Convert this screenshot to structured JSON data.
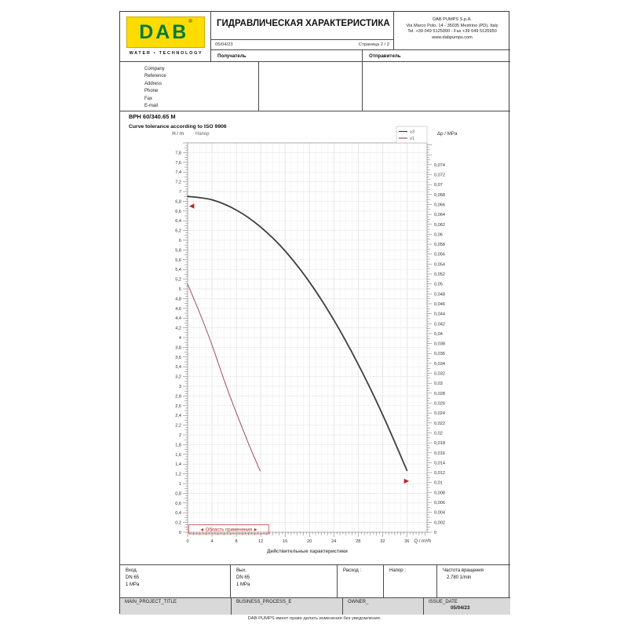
{
  "header": {
    "logo": {
      "brand": "DAB",
      "reg": "®",
      "tagline": "WATER • TECHNOLOGY",
      "bg_color": "#ffdc00",
      "brand_color": "#007a3d"
    },
    "title": "ГИДРАВЛИЧЕСКАЯ ХАРАКТЕРИСТИКА",
    "date": "05/04/23",
    "page": "Страница 2 / 2",
    "address_lines": [
      "DAB PUMPS S.p.A.",
      "Via Marco Polo, 14 - 35035 Mestrino (PD), Italy",
      "Tel. +39 049 5125000 - Fax +39 049 5125950",
      "www.dabpumps.com"
    ],
    "recipient_label": "Получатель",
    "sender_label": "Отправитель",
    "contact_fields": [
      "Company",
      "Reference",
      "Address",
      "Phone",
      "Fax",
      "E-mail"
    ]
  },
  "pump": {
    "model": "BPH 60/340.65 M",
    "tolerance_note": "Curve tolerance according to ISO 9906"
  },
  "chart_data": {
    "type": "line",
    "inner_label": "Напор",
    "ylabel_left": "H / m",
    "ylabel_right": "Δp / MPa",
    "xlabel": "Q / m³/h",
    "x_note": "Действительные характеристики",
    "xlim": [
      0,
      39.3
    ],
    "ylim_left": [
      0,
      8
    ],
    "ylim_right": [
      0,
      0.0784
    ],
    "x_label_step": 4,
    "x_minor_step": 0.5,
    "x_label_max": 36,
    "y_left_label_step": 0.2,
    "y_left_minor_step": 0.05,
    "y_right_label_step": 0.002,
    "y_right_minor_step": 0.0005,
    "y_right_label_max": 0.074,
    "grid": true,
    "legend": {
      "position": "top-right",
      "entries": [
        "v3",
        "v1"
      ]
    },
    "series": [
      {
        "name": "v3",
        "color": "#3d3d3d",
        "width": 1.8,
        "points": [
          [
            0,
            6.9
          ],
          [
            4,
            6.83
          ],
          [
            8,
            6.62
          ],
          [
            12,
            6.27
          ],
          [
            16,
            5.78
          ],
          [
            20,
            5.14
          ],
          [
            24,
            4.36
          ],
          [
            28,
            3.45
          ],
          [
            32,
            2.42
          ],
          [
            36,
            1.27
          ]
        ]
      },
      {
        "name": "v1",
        "color": "#a04868",
        "width": 1,
        "points": [
          [
            0,
            5.1
          ],
          [
            2,
            4.5
          ],
          [
            4,
            3.85
          ],
          [
            6,
            3.12
          ],
          [
            8,
            2.45
          ],
          [
            10,
            1.82
          ],
          [
            11.9,
            1.26
          ]
        ]
      }
    ],
    "markers": [
      {
        "shape": "triangle-left",
        "color": "#b82828",
        "x": 0.7,
        "y": 6.7
      },
      {
        "shape": "triangle-right",
        "color": "#b82828",
        "x": 35.9,
        "y": 1.05
      }
    ],
    "application_range": {
      "text": "Область применения",
      "arrow_left": "◄",
      "arrow_right": "►",
      "color": "#b82828",
      "x_start": 0.2,
      "x_end": 13.3
    }
  },
  "specs": {
    "inlet": {
      "title": "Вход.",
      "line2": "DN 65",
      "line3": "1 MPa"
    },
    "outlet": {
      "title": "Вых.",
      "line2": "DN 65",
      "line3": "1 MPa"
    },
    "flow_label": "Расход :",
    "head_label": "Напор :",
    "speed_label": "Частота вращения",
    "speed_value": "2.780 1/min"
  },
  "meta_row": {
    "project": "MAIN_PROJECT_TITLE",
    "process": "BUSINESS_PROCESS_E",
    "owner": "OWNER_",
    "issue_label": "ISSUE_DATE",
    "issue_value": "05/04/23"
  },
  "footer": "DAB PUMPS имеет право делать изменения без уведомления."
}
